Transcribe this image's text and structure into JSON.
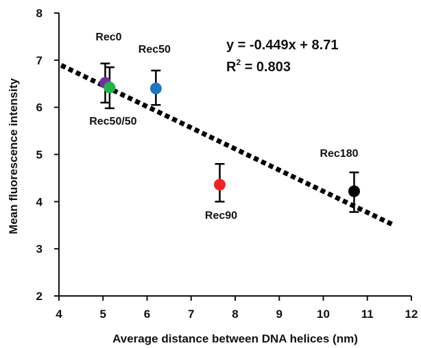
{
  "chart_data": {
    "type": "scatter",
    "xlabel": "Average distance between DNA helices (nm)",
    "ylabel": "Mean fluorescence intensity",
    "xlim": [
      4,
      12
    ],
    "ylim": [
      2,
      8
    ],
    "x_ticks": [
      "4",
      "5",
      "6",
      "7",
      "8",
      "9",
      "10",
      "11",
      "12"
    ],
    "y_ticks": [
      "2",
      "3",
      "4",
      "5",
      "6",
      "7",
      "8"
    ],
    "grid": false,
    "points": [
      {
        "label": "Rec0",
        "x": 5.05,
        "y": 6.52,
        "err_low": 6.1,
        "err_high": 6.93,
        "color": "#7030a0"
      },
      {
        "label": "Rec50/50",
        "x": 5.15,
        "y": 6.42,
        "err_low": 5.98,
        "err_high": 6.85,
        "color": "#22b24c"
      },
      {
        "label": "Rec50",
        "x": 6.2,
        "y": 6.4,
        "err_low": 6.05,
        "err_high": 6.78,
        "color": "#1f77c4"
      },
      {
        "label": "Rec90",
        "x": 7.65,
        "y": 4.36,
        "err_low": 4.0,
        "err_high": 4.8,
        "color": "#ee2424"
      },
      {
        "label": "Rec180",
        "x": 10.7,
        "y": 4.22,
        "err_low": 3.78,
        "err_high": 4.62,
        "color": "#000000"
      }
    ],
    "trendline": {
      "slope": -0.449,
      "intercept": 8.71,
      "x_range": [
        4.05,
        11.6
      ],
      "style": "dotted"
    },
    "annotations": {
      "equation": "y = -0.449x + 8.71",
      "r2_prefix": "R",
      "r2_sup": "2",
      "r2_suffix": " = 0.803"
    }
  }
}
